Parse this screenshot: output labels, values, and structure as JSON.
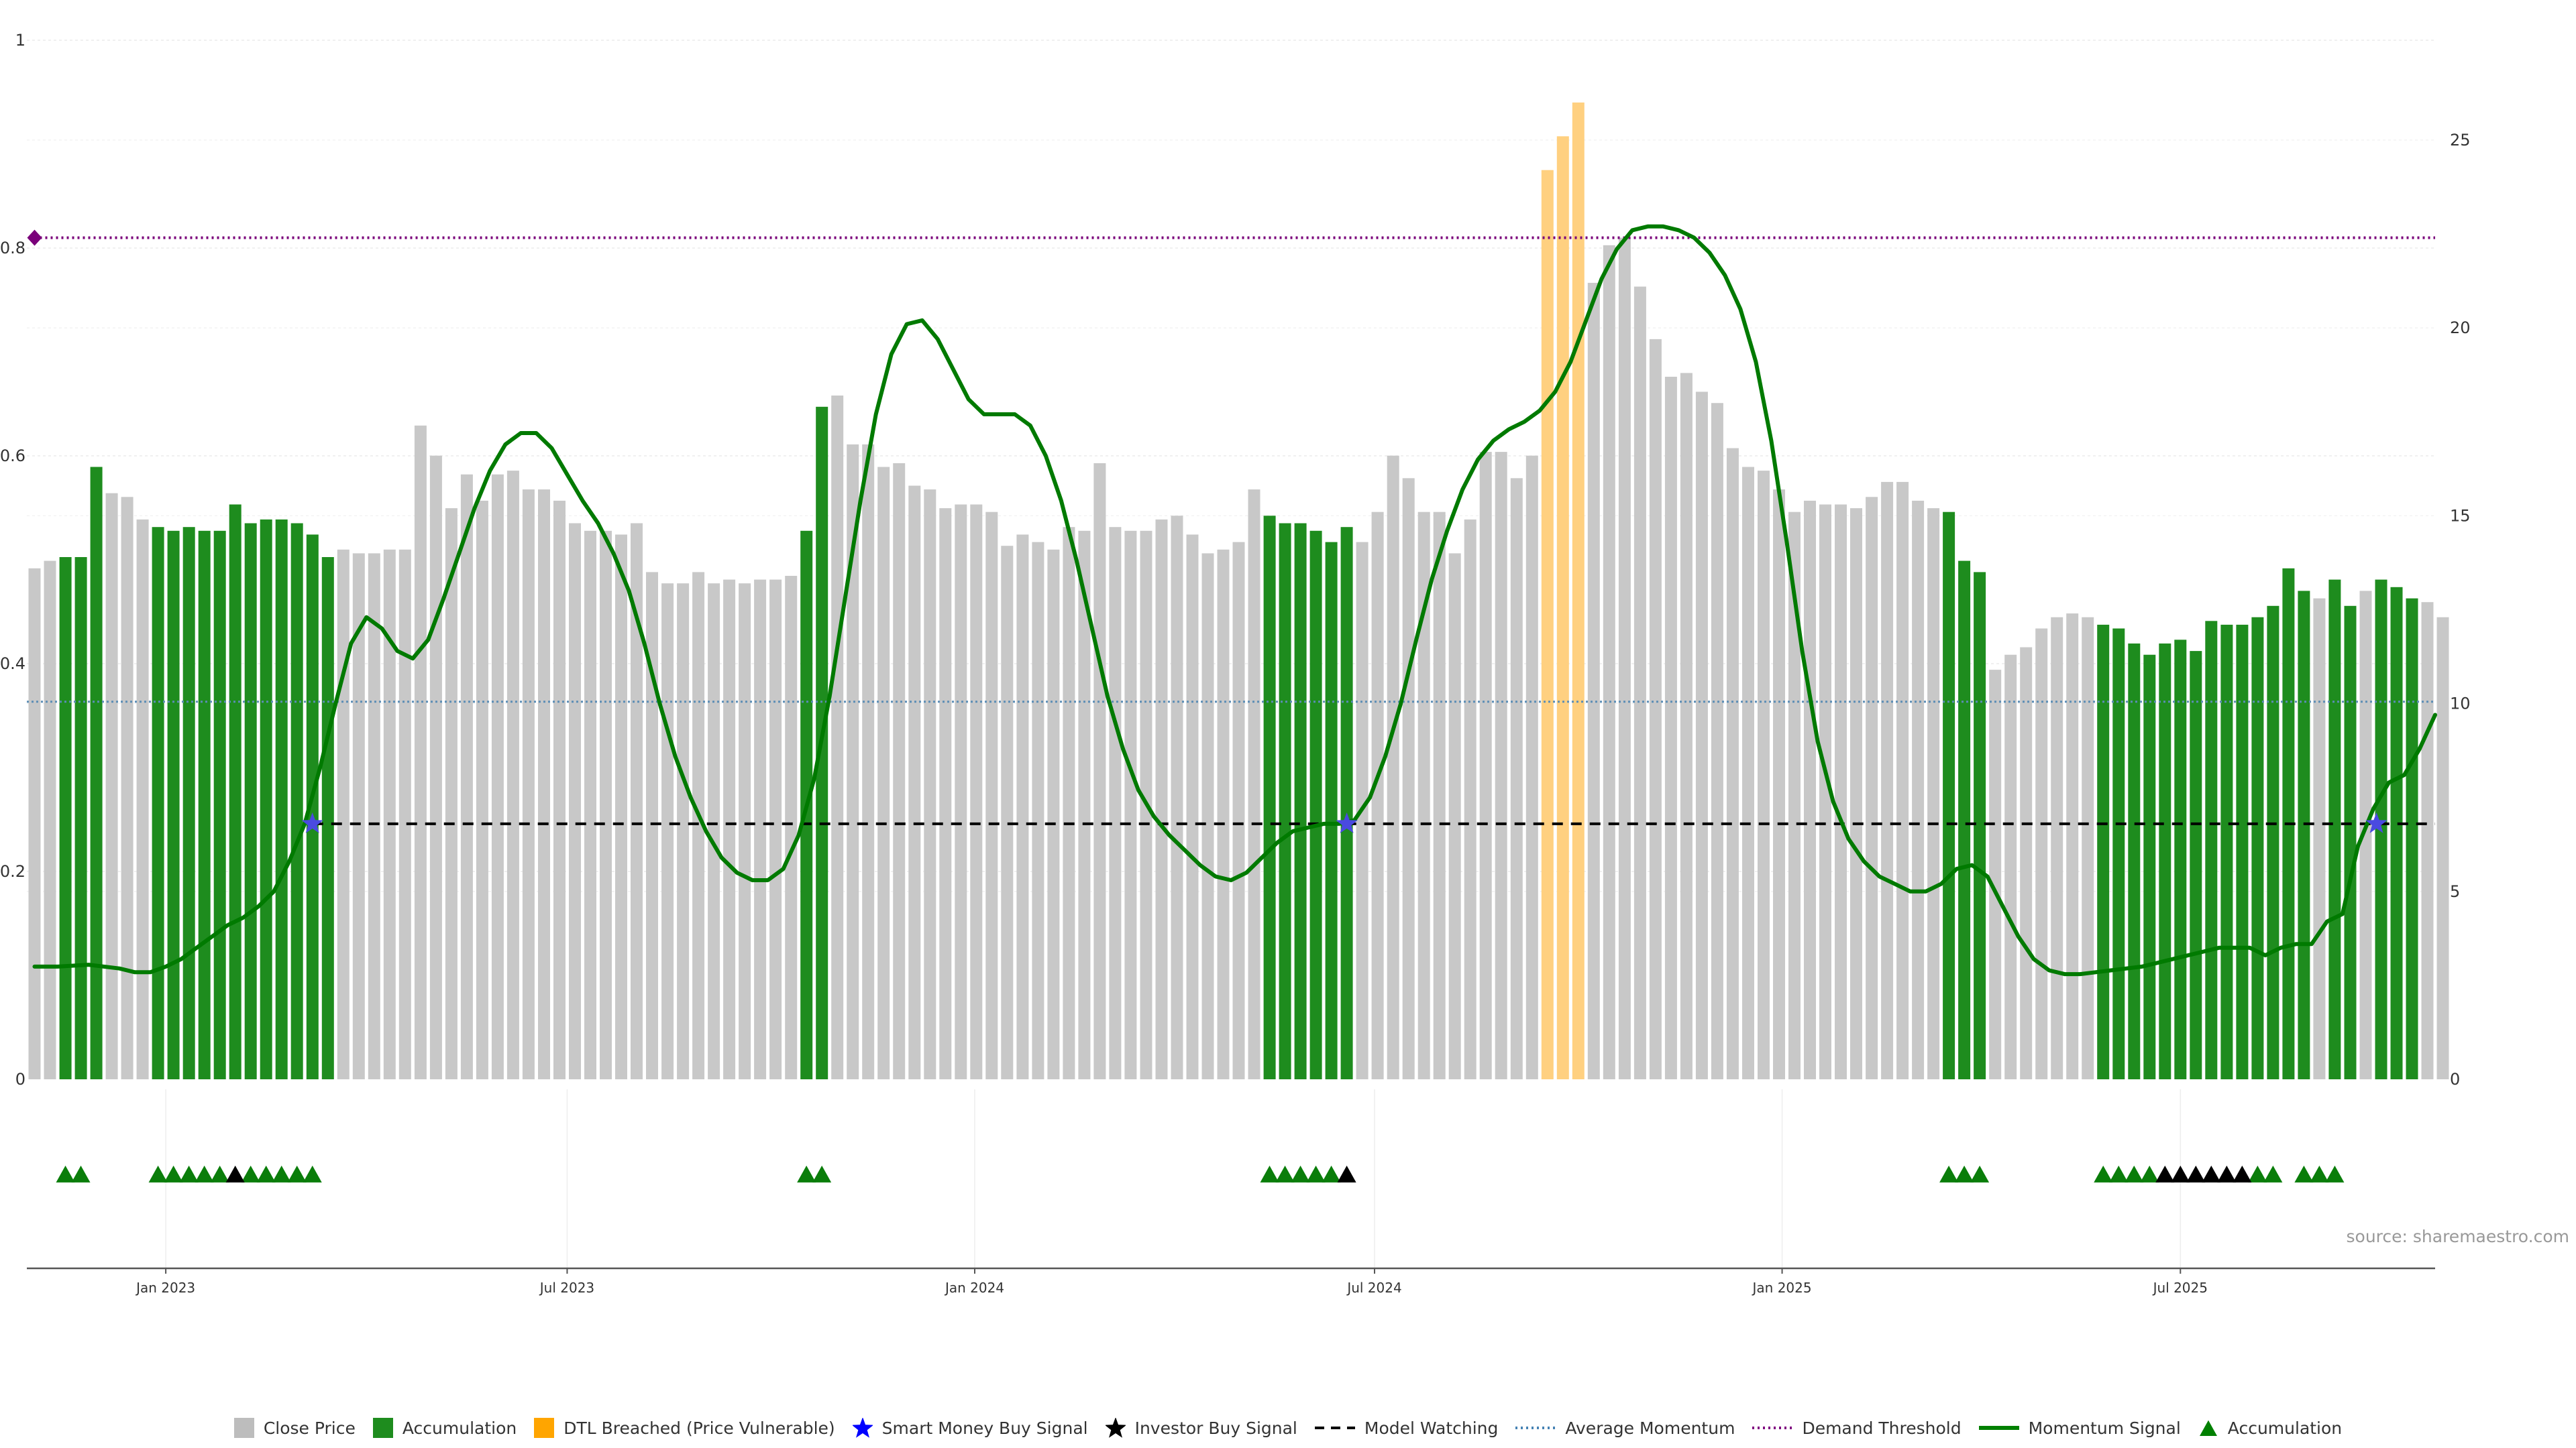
{
  "chart_data": {
    "type": "bar",
    "y_left_ticks": [
      "0",
      "0.2",
      "0.4",
      "0.6",
      "0.8",
      "1"
    ],
    "y_right_ticks": [
      "0",
      "5",
      "10",
      "15",
      "20",
      "25"
    ],
    "y_right_range": [
      0,
      27.3
    ],
    "x_ticks": [
      {
        "label": "Jan 2023",
        "week": 9
      },
      {
        "label": "Jul 2023",
        "week": 35
      },
      {
        "label": "Jan 2024",
        "week": 61.4
      },
      {
        "label": "Jul 2024",
        "week": 87.3
      },
      {
        "label": "Jan 2025",
        "week": 113.7
      },
      {
        "label": "Jul 2025",
        "week": 139.5
      }
    ],
    "x_range": [
      0,
      156
    ],
    "close_price": [
      13.6,
      13.8,
      13.9,
      13.9,
      16.3,
      15.6,
      15.5,
      14.9,
      14.7,
      14.6,
      14.7,
      14.6,
      14.6,
      15.3,
      14.8,
      14.9,
      14.9,
      14.8,
      14.5,
      13.9,
      14.1,
      14,
      14,
      14.1,
      14.1,
      17.4,
      16.6,
      15.2,
      16.1,
      15.4,
      16.1,
      16.2,
      15.7,
      15.7,
      15.4,
      14.8,
      14.6,
      14.6,
      14.5,
      14.8,
      13.5,
      13.2,
      13.2,
      13.5,
      13.2,
      13.3,
      13.2,
      13.3,
      13.3,
      13.4,
      14.6,
      17.9,
      18.2,
      16.9,
      16.9,
      16.3,
      16.4,
      15.8,
      15.7,
      15.2,
      15.3,
      15.3,
      15.1,
      14.2,
      14.5,
      14.3,
      14.1,
      14.7,
      14.6,
      16.4,
      14.7,
      14.6,
      14.6,
      14.9,
      15,
      14.5,
      14,
      14.1,
      14.3,
      15.7,
      15,
      14.8,
      14.8,
      14.6,
      14.3,
      14.7,
      14.3,
      15.1,
      16.6,
      16,
      15.1,
      15.1,
      14,
      14.9,
      16.7,
      16.7,
      16,
      16.6,
      24.2,
      25.1,
      26,
      21.2,
      22.2,
      22.4,
      21.1,
      19.7,
      18.7,
      18.8,
      18.3,
      18,
      16.8,
      16.3,
      16.2,
      15.7,
      15.1,
      15.4,
      15.3,
      15.3,
      15.2,
      15.5,
      15.9,
      15.9,
      15.4,
      15.2,
      15.1,
      13.8,
      13.5,
      10.9,
      11.3,
      11.5,
      12,
      12.3,
      12.4,
      12.3,
      12.1,
      12,
      11.6,
      11.3,
      11.6,
      11.7,
      11.4,
      12.2,
      12.1,
      12.1,
      12.3,
      12.6,
      13.6,
      13,
      12.8,
      13.3,
      12.6,
      13,
      13.3,
      13.1,
      12.8,
      12.7,
      12.3
    ],
    "accumulation_weeks": [
      2,
      3,
      4,
      8,
      9,
      10,
      11,
      12,
      13,
      14,
      15,
      16,
      17,
      18,
      19,
      50,
      51,
      80,
      81,
      82,
      83,
      84,
      85,
      124,
      125,
      126,
      134,
      135,
      136,
      137,
      138,
      139,
      140,
      141,
      142,
      143,
      144,
      145,
      146,
      147,
      149,
      150,
      152,
      153,
      154
    ],
    "dtl_breached_weeks": [
      98,
      99,
      100
    ],
    "momentum_signal": [
      {
        "week": 0.5,
        "v": 3.0
      },
      {
        "week": 2,
        "v": 3.0
      },
      {
        "week": 4,
        "v": 3.05
      },
      {
        "week": 6,
        "v": 2.95
      },
      {
        "week": 7,
        "v": 2.85
      },
      {
        "week": 8,
        "v": 2.85
      },
      {
        "week": 9,
        "v": 3.0
      },
      {
        "week": 10,
        "v": 3.2
      },
      {
        "week": 11,
        "v": 3.5
      },
      {
        "week": 12,
        "v": 3.8
      },
      {
        "week": 13,
        "v": 4.1
      },
      {
        "week": 14,
        "v": 4.3
      },
      {
        "week": 15,
        "v": 4.6
      },
      {
        "week": 16,
        "v": 5.0
      },
      {
        "week": 17,
        "v": 5.8
      },
      {
        "week": 18,
        "v": 6.8
      },
      {
        "week": 19,
        "v": 8.3
      },
      {
        "week": 20,
        "v": 10.0
      },
      {
        "week": 21,
        "v": 11.6
      },
      {
        "week": 22,
        "v": 12.3
      },
      {
        "week": 23,
        "v": 12.0
      },
      {
        "week": 24,
        "v": 11.4
      },
      {
        "week": 25,
        "v": 11.2
      },
      {
        "week": 26,
        "v": 11.7
      },
      {
        "week": 27,
        "v": 12.8
      },
      {
        "week": 28,
        "v": 14.0
      },
      {
        "week": 29,
        "v": 15.2
      },
      {
        "week": 30,
        "v": 16.2
      },
      {
        "week": 31,
        "v": 16.9
      },
      {
        "week": 32,
        "v": 17.2
      },
      {
        "week": 33,
        "v": 17.2
      },
      {
        "week": 34,
        "v": 16.8
      },
      {
        "week": 35,
        "v": 16.1
      },
      {
        "week": 36,
        "v": 15.4
      },
      {
        "week": 37,
        "v": 14.8
      },
      {
        "week": 38,
        "v": 14.0
      },
      {
        "week": 39,
        "v": 13.0
      },
      {
        "week": 40,
        "v": 11.6
      },
      {
        "week": 41,
        "v": 10.0
      },
      {
        "week": 42,
        "v": 8.6
      },
      {
        "week": 43,
        "v": 7.5
      },
      {
        "week": 44,
        "v": 6.6
      },
      {
        "week": 45,
        "v": 5.9
      },
      {
        "week": 46,
        "v": 5.5
      },
      {
        "week": 47,
        "v": 5.3
      },
      {
        "week": 48,
        "v": 5.3
      },
      {
        "week": 49,
        "v": 5.6
      },
      {
        "week": 50,
        "v": 6.5
      },
      {
        "week": 51,
        "v": 8.0
      },
      {
        "week": 52,
        "v": 10.2
      },
      {
        "week": 53,
        "v": 12.8
      },
      {
        "week": 54,
        "v": 15.4
      },
      {
        "week": 55,
        "v": 17.7
      },
      {
        "week": 56,
        "v": 19.3
      },
      {
        "week": 57,
        "v": 20.1
      },
      {
        "week": 58,
        "v": 20.2
      },
      {
        "week": 59,
        "v": 19.7
      },
      {
        "week": 60,
        "v": 18.9
      },
      {
        "week": 61,
        "v": 18.1
      },
      {
        "week": 62,
        "v": 17.7
      },
      {
        "week": 63,
        "v": 17.7
      },
      {
        "week": 64,
        "v": 17.7
      },
      {
        "week": 65,
        "v": 17.4
      },
      {
        "week": 66,
        "v": 16.6
      },
      {
        "week": 67,
        "v": 15.4
      },
      {
        "week": 68,
        "v": 13.8
      },
      {
        "week": 69,
        "v": 12.0
      },
      {
        "week": 70,
        "v": 10.2
      },
      {
        "week": 71,
        "v": 8.8
      },
      {
        "week": 72,
        "v": 7.7
      },
      {
        "week": 73,
        "v": 7.0
      },
      {
        "week": 74,
        "v": 6.5
      },
      {
        "week": 75,
        "v": 6.1
      },
      {
        "week": 76,
        "v": 5.7
      },
      {
        "week": 77,
        "v": 5.4
      },
      {
        "week": 78,
        "v": 5.3
      },
      {
        "week": 79,
        "v": 5.5
      },
      {
        "week": 80,
        "v": 5.9
      },
      {
        "week": 81,
        "v": 6.3
      },
      {
        "week": 82,
        "v": 6.6
      },
      {
        "week": 83,
        "v": 6.7
      },
      {
        "week": 84,
        "v": 6.8
      },
      {
        "week": 85,
        "v": 6.8
      },
      {
        "week": 86,
        "v": 6.9
      },
      {
        "week": 87,
        "v": 7.5
      },
      {
        "week": 88,
        "v": 8.6
      },
      {
        "week": 89,
        "v": 10.0
      },
      {
        "week": 90,
        "v": 11.7
      },
      {
        "week": 91,
        "v": 13.3
      },
      {
        "week": 92,
        "v": 14.6
      },
      {
        "week": 93,
        "v": 15.7
      },
      {
        "week": 94,
        "v": 16.5
      },
      {
        "week": 95,
        "v": 17.0
      },
      {
        "week": 96,
        "v": 17.3
      },
      {
        "week": 97,
        "v": 17.5
      },
      {
        "week": 98,
        "v": 17.8
      },
      {
        "week": 99,
        "v": 18.3
      },
      {
        "week": 100,
        "v": 19.1
      },
      {
        "week": 101,
        "v": 20.2
      },
      {
        "week": 102,
        "v": 21.3
      },
      {
        "week": 103,
        "v": 22.1
      },
      {
        "week": 104,
        "v": 22.6
      },
      {
        "week": 105,
        "v": 22.7
      },
      {
        "week": 106,
        "v": 22.7
      },
      {
        "week": 107,
        "v": 22.6
      },
      {
        "week": 108,
        "v": 22.4
      },
      {
        "week": 109,
        "v": 22.0
      },
      {
        "week": 110,
        "v": 21.4
      },
      {
        "week": 111,
        "v": 20.5
      },
      {
        "week": 112,
        "v": 19.1
      },
      {
        "week": 113,
        "v": 17.0
      },
      {
        "week": 114,
        "v": 14.3
      },
      {
        "week": 115,
        "v": 11.4
      },
      {
        "week": 116,
        "v": 9.0
      },
      {
        "week": 117,
        "v": 7.4
      },
      {
        "week": 118,
        "v": 6.4
      },
      {
        "week": 119,
        "v": 5.8
      },
      {
        "week": 120,
        "v": 5.4
      },
      {
        "week": 121,
        "v": 5.2
      },
      {
        "week": 122,
        "v": 5.0
      },
      {
        "week": 123,
        "v": 5.0
      },
      {
        "week": 124,
        "v": 5.2
      },
      {
        "week": 125,
        "v": 5.6
      },
      {
        "week": 126,
        "v": 5.7
      },
      {
        "week": 127,
        "v": 5.4
      },
      {
        "week": 128,
        "v": 4.6
      },
      {
        "week": 129,
        "v": 3.8
      },
      {
        "week": 130,
        "v": 3.2
      },
      {
        "week": 131,
        "v": 2.9
      },
      {
        "week": 132,
        "v": 2.8
      },
      {
        "week": 133,
        "v": 2.8
      },
      {
        "week": 134,
        "v": 2.85
      },
      {
        "week": 135,
        "v": 2.9
      },
      {
        "week": 136,
        "v": 2.95
      },
      {
        "week": 137,
        "v": 3.0
      },
      {
        "week": 138,
        "v": 3.1
      },
      {
        "week": 139,
        "v": 3.2
      },
      {
        "week": 140,
        "v": 3.3
      },
      {
        "week": 141,
        "v": 3.4
      },
      {
        "week": 142,
        "v": 3.5
      },
      {
        "week": 143,
        "v": 3.5
      },
      {
        "week": 144,
        "v": 3.5
      },
      {
        "week": 145,
        "v": 3.3
      },
      {
        "week": 146,
        "v": 3.5
      },
      {
        "week": 147,
        "v": 3.6
      },
      {
        "week": 148,
        "v": 3.6
      },
      {
        "week": 149,
        "v": 4.2
      },
      {
        "week": 150,
        "v": 4.4
      },
      {
        "week": 151,
        "v": 6.2
      },
      {
        "week": 152,
        "v": 7.2
      },
      {
        "week": 153,
        "v": 7.9
      },
      {
        "week": 154,
        "v": 8.1
      },
      {
        "week": 155,
        "v": 8.8
      },
      {
        "week": 156,
        "v": 9.7
      }
    ],
    "model_watching_level": 6.8,
    "model_watching_range": [
      18.5,
      156
    ],
    "average_momentum_level": 10.05,
    "demand_threshold_level": 22.4,
    "smart_money_buy_weeks": [
      18.5,
      85.5,
      152.2
    ],
    "marker_row": {
      "accumulation_weeks": [
        2,
        3,
        8,
        9,
        10,
        11,
        12,
        14,
        15,
        16,
        17,
        18,
        50,
        51,
        80,
        81,
        82,
        83,
        84,
        124,
        125,
        126,
        134,
        135,
        136,
        137,
        144,
        145,
        147,
        148,
        149
      ],
      "investor_buy_weeks": [
        13,
        85,
        138,
        139,
        140,
        141,
        142,
        143
      ]
    },
    "legend": [
      {
        "label": "Close Price",
        "kind": "square",
        "color": "#bdbdbd"
      },
      {
        "label": "Accumulation",
        "kind": "square",
        "color": "#1e8c1e"
      },
      {
        "label": "DTL Breached (Price Vulnerable)",
        "kind": "square",
        "color": "#ffa500"
      },
      {
        "label": "Smart Money Buy Signal",
        "kind": "star",
        "color": "#0000ff"
      },
      {
        "label": "Investor Buy Signal",
        "kind": "star",
        "color": "#000000"
      },
      {
        "label": "Model Watching",
        "kind": "dashed",
        "color": "#000000"
      },
      {
        "label": "Average Momentum",
        "kind": "dotted",
        "color": "#4682b4"
      },
      {
        "label": "Demand Threshold",
        "kind": "dotted",
        "color": "#800080"
      },
      {
        "label": "Momentum Signal",
        "kind": "line",
        "color": "#008000"
      },
      {
        "label": "Accumulation",
        "kind": "triangle",
        "color": "#008000"
      }
    ],
    "source": "source: sharemaestro.com",
    "colors": {
      "close_price": "#c8c8c8",
      "accumulation": "#1e8c1e",
      "dtl_breached": "#ffd080",
      "momentum": "#007a00",
      "model_watching": "#000000",
      "average_momentum": "#5b8db5",
      "demand_threshold": "#7a007a",
      "smart_money": "#4a4ae0",
      "marker_green": "#0a7d0a",
      "marker_black": "#000000"
    }
  }
}
